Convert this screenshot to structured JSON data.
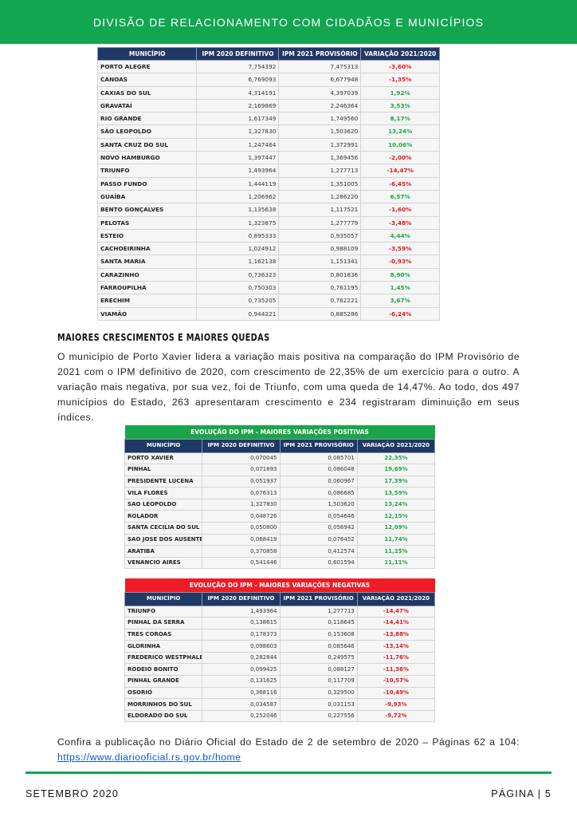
{
  "header": {
    "title": "DIVISÃO DE RELACIONAMENTO COM CIDADÃOS E MUNICÍPIOS"
  },
  "colors": {
    "brand_green": "#12a650",
    "table_header": "#1f3864",
    "positive": "#1aa548",
    "negative": "#e0171f"
  },
  "columns": [
    "MUNICÍPIO",
    "IPM 2020 DEFINITIVO",
    "IPM 2021 PROVISÓRIO",
    "VARIAÇÃO 2021/2020"
  ],
  "table_main": {
    "rows": [
      [
        "PORTO ALEGRE",
        "7,754392",
        "7,475313",
        "-3,60%"
      ],
      [
        "CANOAS",
        "6,769093",
        "6,677948",
        "-1,35%"
      ],
      [
        "CAXIAS DO SUL",
        "4,314191",
        "4,397039",
        "1,92%"
      ],
      [
        "GRAVATAÍ",
        "2,169869",
        "2,246364",
        "3,53%"
      ],
      [
        "RIO GRANDE",
        "1,617349",
        "1,749560",
        "8,17%"
      ],
      [
        "SÃO LEOPOLDO",
        "1,327830",
        "1,503620",
        "13,24%"
      ],
      [
        "SANTA CRUZ DO SUL",
        "1,247464",
        "1,372991",
        "10,06%"
      ],
      [
        "NOVO HAMBURGO",
        "1,397447",
        "1,369456",
        "-2,00%"
      ],
      [
        "TRIUNFO",
        "1,493964",
        "1,277713",
        "-14,47%"
      ],
      [
        "PASSO FUNDO",
        "1,444119",
        "1,351005",
        "-6,45%"
      ],
      [
        "GUAÍBA",
        "1,206962",
        "1,286220",
        "6,57%"
      ],
      [
        "BENTO GONÇALVES",
        "1,135638",
        "1,117521",
        "-1,60%"
      ],
      [
        "PELOTAS",
        "1,323875",
        "1,277779",
        "-3,48%"
      ],
      [
        "ESTEIO",
        "0,895333",
        "0,935057",
        "4,44%"
      ],
      [
        "CACHOEIRINHA",
        "1,024912",
        "0,988109",
        "-3,59%"
      ],
      [
        "SANTA MARIA",
        "1,162138",
        "1,151341",
        "-0,93%"
      ],
      [
        "CARAZINHO",
        "0,736323",
        "0,801836",
        "8,90%"
      ],
      [
        "FARROUPILHA",
        "0,750303",
        "0,761195",
        "1,45%"
      ],
      [
        "ERECHIM",
        "0,735205",
        "0,762221",
        "3,67%"
      ],
      [
        "VIAMÃO",
        "0,944221",
        "0,885286",
        "-6,24%"
      ]
    ]
  },
  "section": {
    "heading": "MAIORES CRESCIMENTOS E MAIORES QUEDAS",
    "paragraph": "O município de Porto Xavier lidera a variação mais positiva na comparação do IPM Provisório de 2021 com o IPM definitivo de 2020, com crescimento de 22,35% de um exercício para o outro. A variação mais negativa, por sua vez, foi de Triunfo, com uma queda de 14,47%. Ao todo, dos 497 municípios do Estado, 263 apresentaram crescimento e 234 registraram diminuição em seus índices."
  },
  "table_positive": {
    "caption": "EVOLUÇÃO DO IPM - MAIORES VARIAÇÕES POSITIVAS",
    "caption_color": "#1aa548",
    "rows": [
      [
        "PORTO XAVIER",
        "0,070045",
        "0,085701",
        "22,35%"
      ],
      [
        "PINHAL",
        "0,071893",
        "0,086048",
        "19,69%"
      ],
      [
        "PRESIDENTE LUCENA",
        "0,051937",
        "0,060967",
        "17,39%"
      ],
      [
        "VILA FLORES",
        "0,076313",
        "0,086685",
        "13,59%"
      ],
      [
        "SAO LEOPOLDO",
        "1,327830",
        "1,503620",
        "13,24%"
      ],
      [
        "ROLADOR",
        "0,048726",
        "0,054646",
        "12,15%"
      ],
      [
        "SANTA CECILIA DO SUL",
        "0,050800",
        "0,056942",
        "12,09%"
      ],
      [
        "SAO JOSE DOS AUSENTES",
        "0,068419",
        "0,076452",
        "11,74%"
      ],
      [
        "ARATIBA",
        "0,370858",
        "0,412574",
        "11,25%"
      ],
      [
        "VENANCIO AIRES",
        "0,541446",
        "0,601594",
        "11,11%"
      ]
    ]
  },
  "table_negative": {
    "caption": "EVOLUÇÃO DO IPM - MAIORES VARIAÇÕES NEGATIVAS",
    "caption_color": "#ee1c25",
    "rows": [
      [
        "TRIUNFO",
        "1,493964",
        "1,277713",
        "-14,47%"
      ],
      [
        "PINHAL DA SERRA",
        "0,138615",
        "0,118645",
        "-14,41%"
      ],
      [
        "TRES COROAS",
        "0,178373",
        "0,153608",
        "-13,88%"
      ],
      [
        "GLORINHA",
        "0,098603",
        "0,085646",
        "-13,14%"
      ],
      [
        "FREDERICO WESTPHALEN",
        "0,282844",
        "0,249575",
        "-11,76%"
      ],
      [
        "RODEIO BONITO",
        "0,099425",
        "0,088127",
        "-11,36%"
      ],
      [
        "PINHAL GRANDE",
        "0,131625",
        "0,117709",
        "-10,57%"
      ],
      [
        "OSORIO",
        "0,368116",
        "0,329500",
        "-10,49%"
      ],
      [
        "MORRINHOS DO SUL",
        "0,034587",
        "0,031153",
        "-9,93%"
      ],
      [
        "ELDORADO DO SUL",
        "0,252046",
        "0,227556",
        "-9,72%"
      ]
    ]
  },
  "closing": {
    "text": "Confira a publicação no Diário Oficial do Estado de 2 de setembro de 2020 – Páginas 62 a 104: ",
    "link": "https://www.diariooficial.rs.gov.br/home"
  },
  "footer": {
    "left": "SETEMBRO 2020",
    "right": "PÁGINA | 5"
  }
}
